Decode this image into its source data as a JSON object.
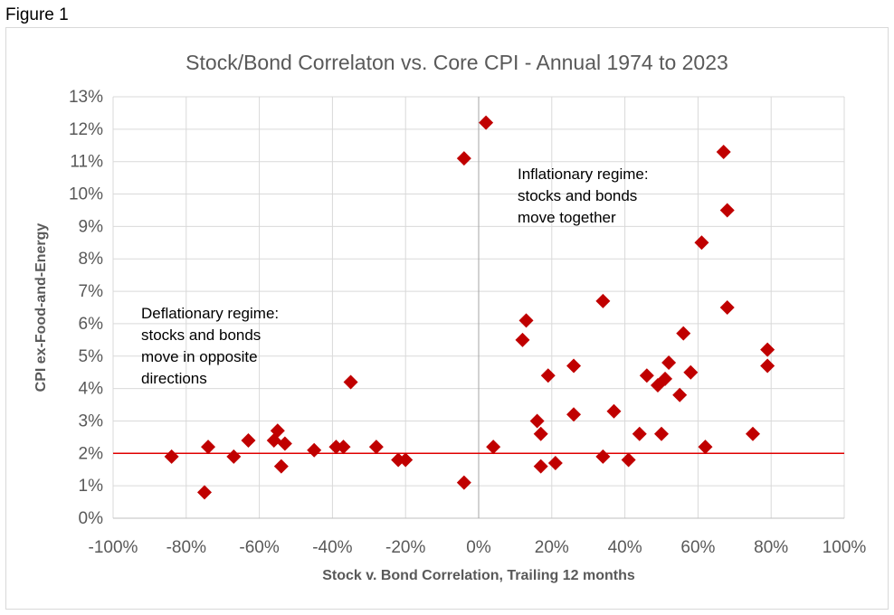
{
  "figure_label": "Figure 1",
  "chart_data": {
    "type": "scatter",
    "title": "Stock/Bond Correlaton vs. Core CPI - Annual 1974 to 2023",
    "xlabel": "Stock v. Bond Correlation, Trailing  12 months",
    "ylabel": "CPI ex-Food-and-Energy",
    "xlim": [
      -100,
      100
    ],
    "ylim": [
      0,
      13
    ],
    "grid": true,
    "x_tick_labels": [
      "-100%",
      "-80%",
      "-60%",
      "-40%",
      "-20%",
      "0%",
      "20%",
      "40%",
      "60%",
      "80%",
      "100%"
    ],
    "y_tick_labels": [
      "0%",
      "1%",
      "2%",
      "3%",
      "4%",
      "5%",
      "6%",
      "7%",
      "8%",
      "9%",
      "10%",
      "11%",
      "12%",
      "13%"
    ],
    "marker_color": "#c00000",
    "reference_line": {
      "y": 2,
      "color": "#e00000"
    },
    "annotations": [
      {
        "lines": [
          "Deflationary regime:",
          "stocks and bonds",
          "move in opposite",
          "directions"
        ]
      },
      {
        "lines": [
          "Inflationary regime:",
          "stocks and bonds",
          "move together"
        ]
      }
    ],
    "points": [
      {
        "x": -84,
        "y": 1.9
      },
      {
        "x": -75,
        "y": 0.8
      },
      {
        "x": -74,
        "y": 2.2
      },
      {
        "x": -67,
        "y": 1.9
      },
      {
        "x": -63,
        "y": 2.4
      },
      {
        "x": -56,
        "y": 2.4
      },
      {
        "x": -55,
        "y": 2.7
      },
      {
        "x": -53,
        "y": 2.3
      },
      {
        "x": -54,
        "y": 1.6
      },
      {
        "x": -45,
        "y": 2.1
      },
      {
        "x": -39,
        "y": 2.2
      },
      {
        "x": -37,
        "y": 2.2
      },
      {
        "x": -35,
        "y": 4.2
      },
      {
        "x": -28,
        "y": 2.2
      },
      {
        "x": -22,
        "y": 1.8
      },
      {
        "x": -20,
        "y": 1.8
      },
      {
        "x": -4,
        "y": 11.1
      },
      {
        "x": -4,
        "y": 1.1
      },
      {
        "x": 2,
        "y": 12.2
      },
      {
        "x": 4,
        "y": 2.2
      },
      {
        "x": 12,
        "y": 5.5
      },
      {
        "x": 13,
        "y": 6.1
      },
      {
        "x": 16,
        "y": 3.0
      },
      {
        "x": 17,
        "y": 2.6
      },
      {
        "x": 17,
        "y": 1.6
      },
      {
        "x": 19,
        "y": 4.4
      },
      {
        "x": 21,
        "y": 1.7
      },
      {
        "x": 26,
        "y": 4.7
      },
      {
        "x": 26,
        "y": 3.2
      },
      {
        "x": 34,
        "y": 6.7
      },
      {
        "x": 34,
        "y": 1.9
      },
      {
        "x": 37,
        "y": 3.3
      },
      {
        "x": 41,
        "y": 1.8
      },
      {
        "x": 44,
        "y": 2.6
      },
      {
        "x": 46,
        "y": 4.4
      },
      {
        "x": 49,
        "y": 4.1
      },
      {
        "x": 51,
        "y": 4.3
      },
      {
        "x": 50,
        "y": 2.6
      },
      {
        "x": 52,
        "y": 4.8
      },
      {
        "x": 55,
        "y": 3.8
      },
      {
        "x": 56,
        "y": 5.7
      },
      {
        "x": 58,
        "y": 4.5
      },
      {
        "x": 61,
        "y": 8.5
      },
      {
        "x": 62,
        "y": 2.2
      },
      {
        "x": 67,
        "y": 11.3
      },
      {
        "x": 68,
        "y": 9.5
      },
      {
        "x": 68,
        "y": 6.5
      },
      {
        "x": 75,
        "y": 2.6
      },
      {
        "x": 79,
        "y": 5.2
      },
      {
        "x": 79,
        "y": 4.7
      }
    ]
  }
}
